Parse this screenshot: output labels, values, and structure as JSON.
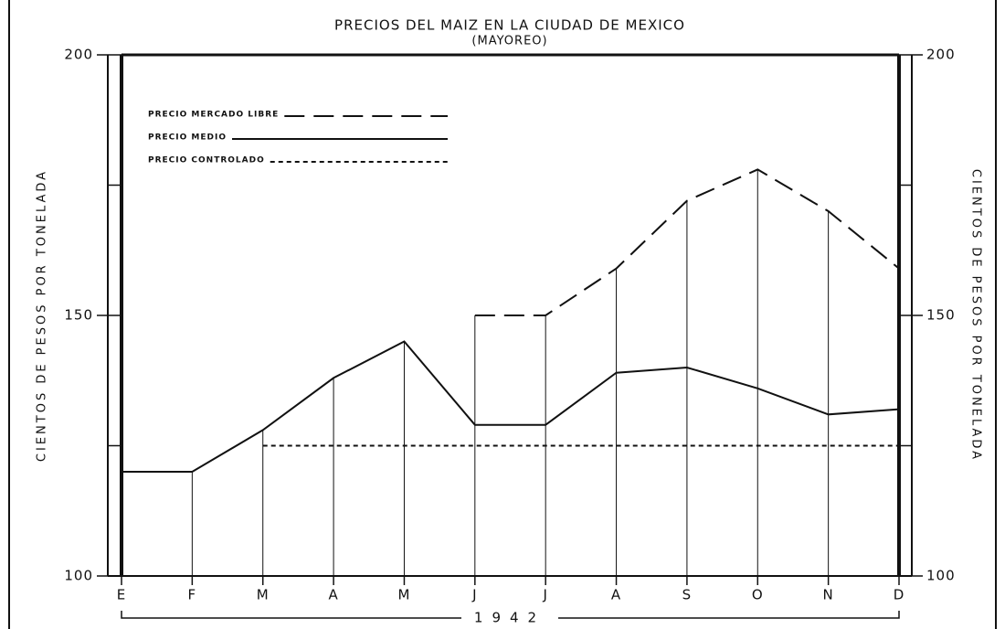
{
  "chart_data": {
    "type": "line",
    "title": "PRECIOS DEL MAIZ EN LA CIUDAD DE MEXICO",
    "subtitle": "(MAYOREO)",
    "y_label": "CIENTOS DE PESOS POR TONELADA",
    "y2_label": "CIENTOS DE PESOS POR TONELADA",
    "x_label": "1942",
    "categories": [
      "E",
      "F",
      "M",
      "A",
      "M",
      "J",
      "J",
      "A",
      "S",
      "O",
      "N",
      "D"
    ],
    "series": [
      {
        "name": "PRECIO MERCADO LIBRE",
        "color": "#111111",
        "style": "dashed",
        "values": [
          null,
          null,
          null,
          null,
          null,
          150,
          150,
          159,
          172,
          178,
          170,
          159
        ]
      },
      {
        "name": "PRECIO MEDIO",
        "color": "#111111",
        "style": "solid",
        "values": [
          120,
          120,
          128,
          138,
          145,
          129,
          129,
          139,
          140,
          136,
          131,
          132
        ]
      },
      {
        "name": "PRECIO CONTROLADO",
        "color": "#111111",
        "style": "dotted",
        "values": [
          null,
          null,
          125,
          125,
          125,
          125,
          125,
          125,
          125,
          125,
          125,
          125
        ]
      }
    ],
    "ylim": [
      100,
      200
    ],
    "yticks": [
      100,
      150,
      200
    ],
    "y2lim": [
      100,
      200
    ],
    "y2ticks": [
      100,
      150,
      200
    ],
    "minor_yticks": [
      125,
      175
    ],
    "legend": "upper left"
  }
}
